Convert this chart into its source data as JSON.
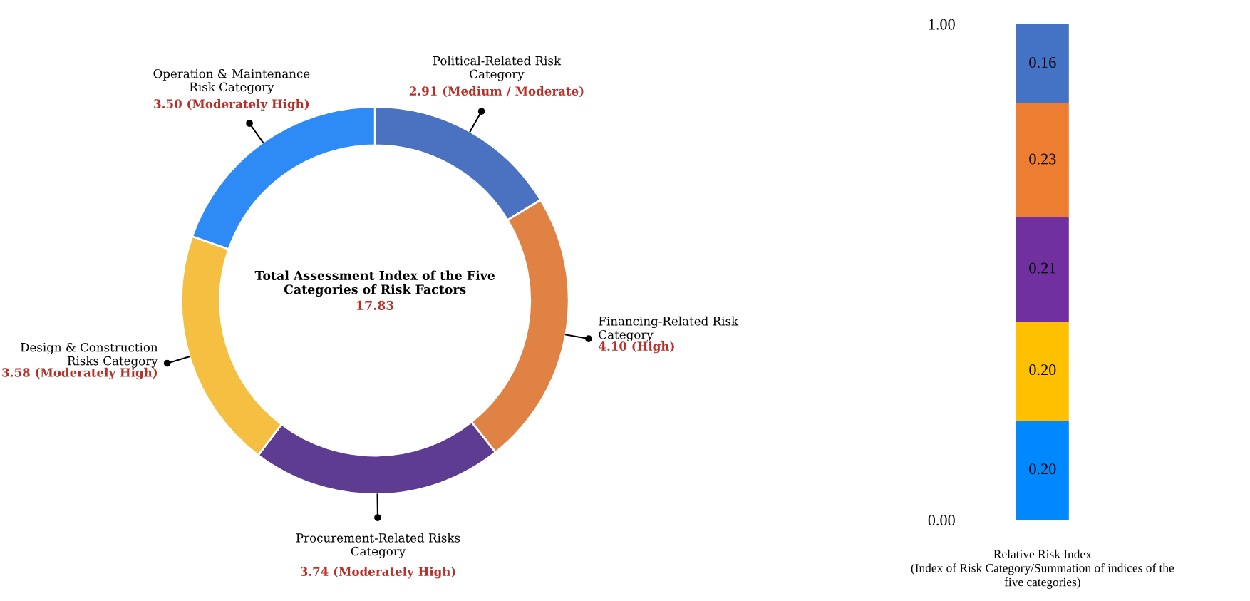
{
  "chart_data": [
    {
      "type": "donut",
      "categories": [
        "Political-Related Risk\nCategory",
        "Financing-Related Risk\nCategory",
        "Procurement-Related Risks\nCategory",
        "Design & Construction\nRisks Category",
        "Operation & Maintenance\nRisk Category"
      ],
      "values": [
        2.91,
        4.1,
        3.74,
        3.58,
        3.5
      ],
      "value_labels": [
        "2.91 (Medium / Moderate)",
        "4.10 (High)",
        "3.74 (Moderately High)",
        "3.58 (Moderately High)",
        "3.50 (Moderately High)"
      ],
      "colors": [
        "#4a72c0",
        "#e08244",
        "#5e3c92",
        "#f5bf42",
        "#2e8af5"
      ],
      "annotations": [
        "Total Assessment Index of the Five\nCategories of Risk Factors",
        "17.83"
      ]
    },
    {
      "type": "bar",
      "stacked": true,
      "categories": [
        null
      ],
      "series": [
        {
          "color": "#0088ff",
          "values": [
            0.2
          ],
          "value_labels": [
            "0.20"
          ]
        },
        {
          "color": "#ffc000",
          "values": [
            0.2
          ],
          "value_labels": [
            "0.20"
          ]
        },
        {
          "color": "#7030a0",
          "values": [
            0.21
          ],
          "value_labels": [
            "0.21"
          ]
        },
        {
          "color": "#ed7d31",
          "values": [
            0.23
          ],
          "value_labels": [
            "0.23"
          ]
        },
        {
          "color": "#4472c4",
          "values": [
            0.16
          ],
          "value_labels": [
            "0.16"
          ]
        }
      ],
      "ylim": [
        0,
        1
      ],
      "yticks": [
        {
          "value": 0,
          "label": "0.00"
        },
        {
          "value": 1,
          "label": "1.00"
        }
      ],
      "xlabel": "Relative Risk Index\n(Index of Risk Category/Summation of indices of the\nfive categories)",
      "tick_labels": "y"
    }
  ]
}
